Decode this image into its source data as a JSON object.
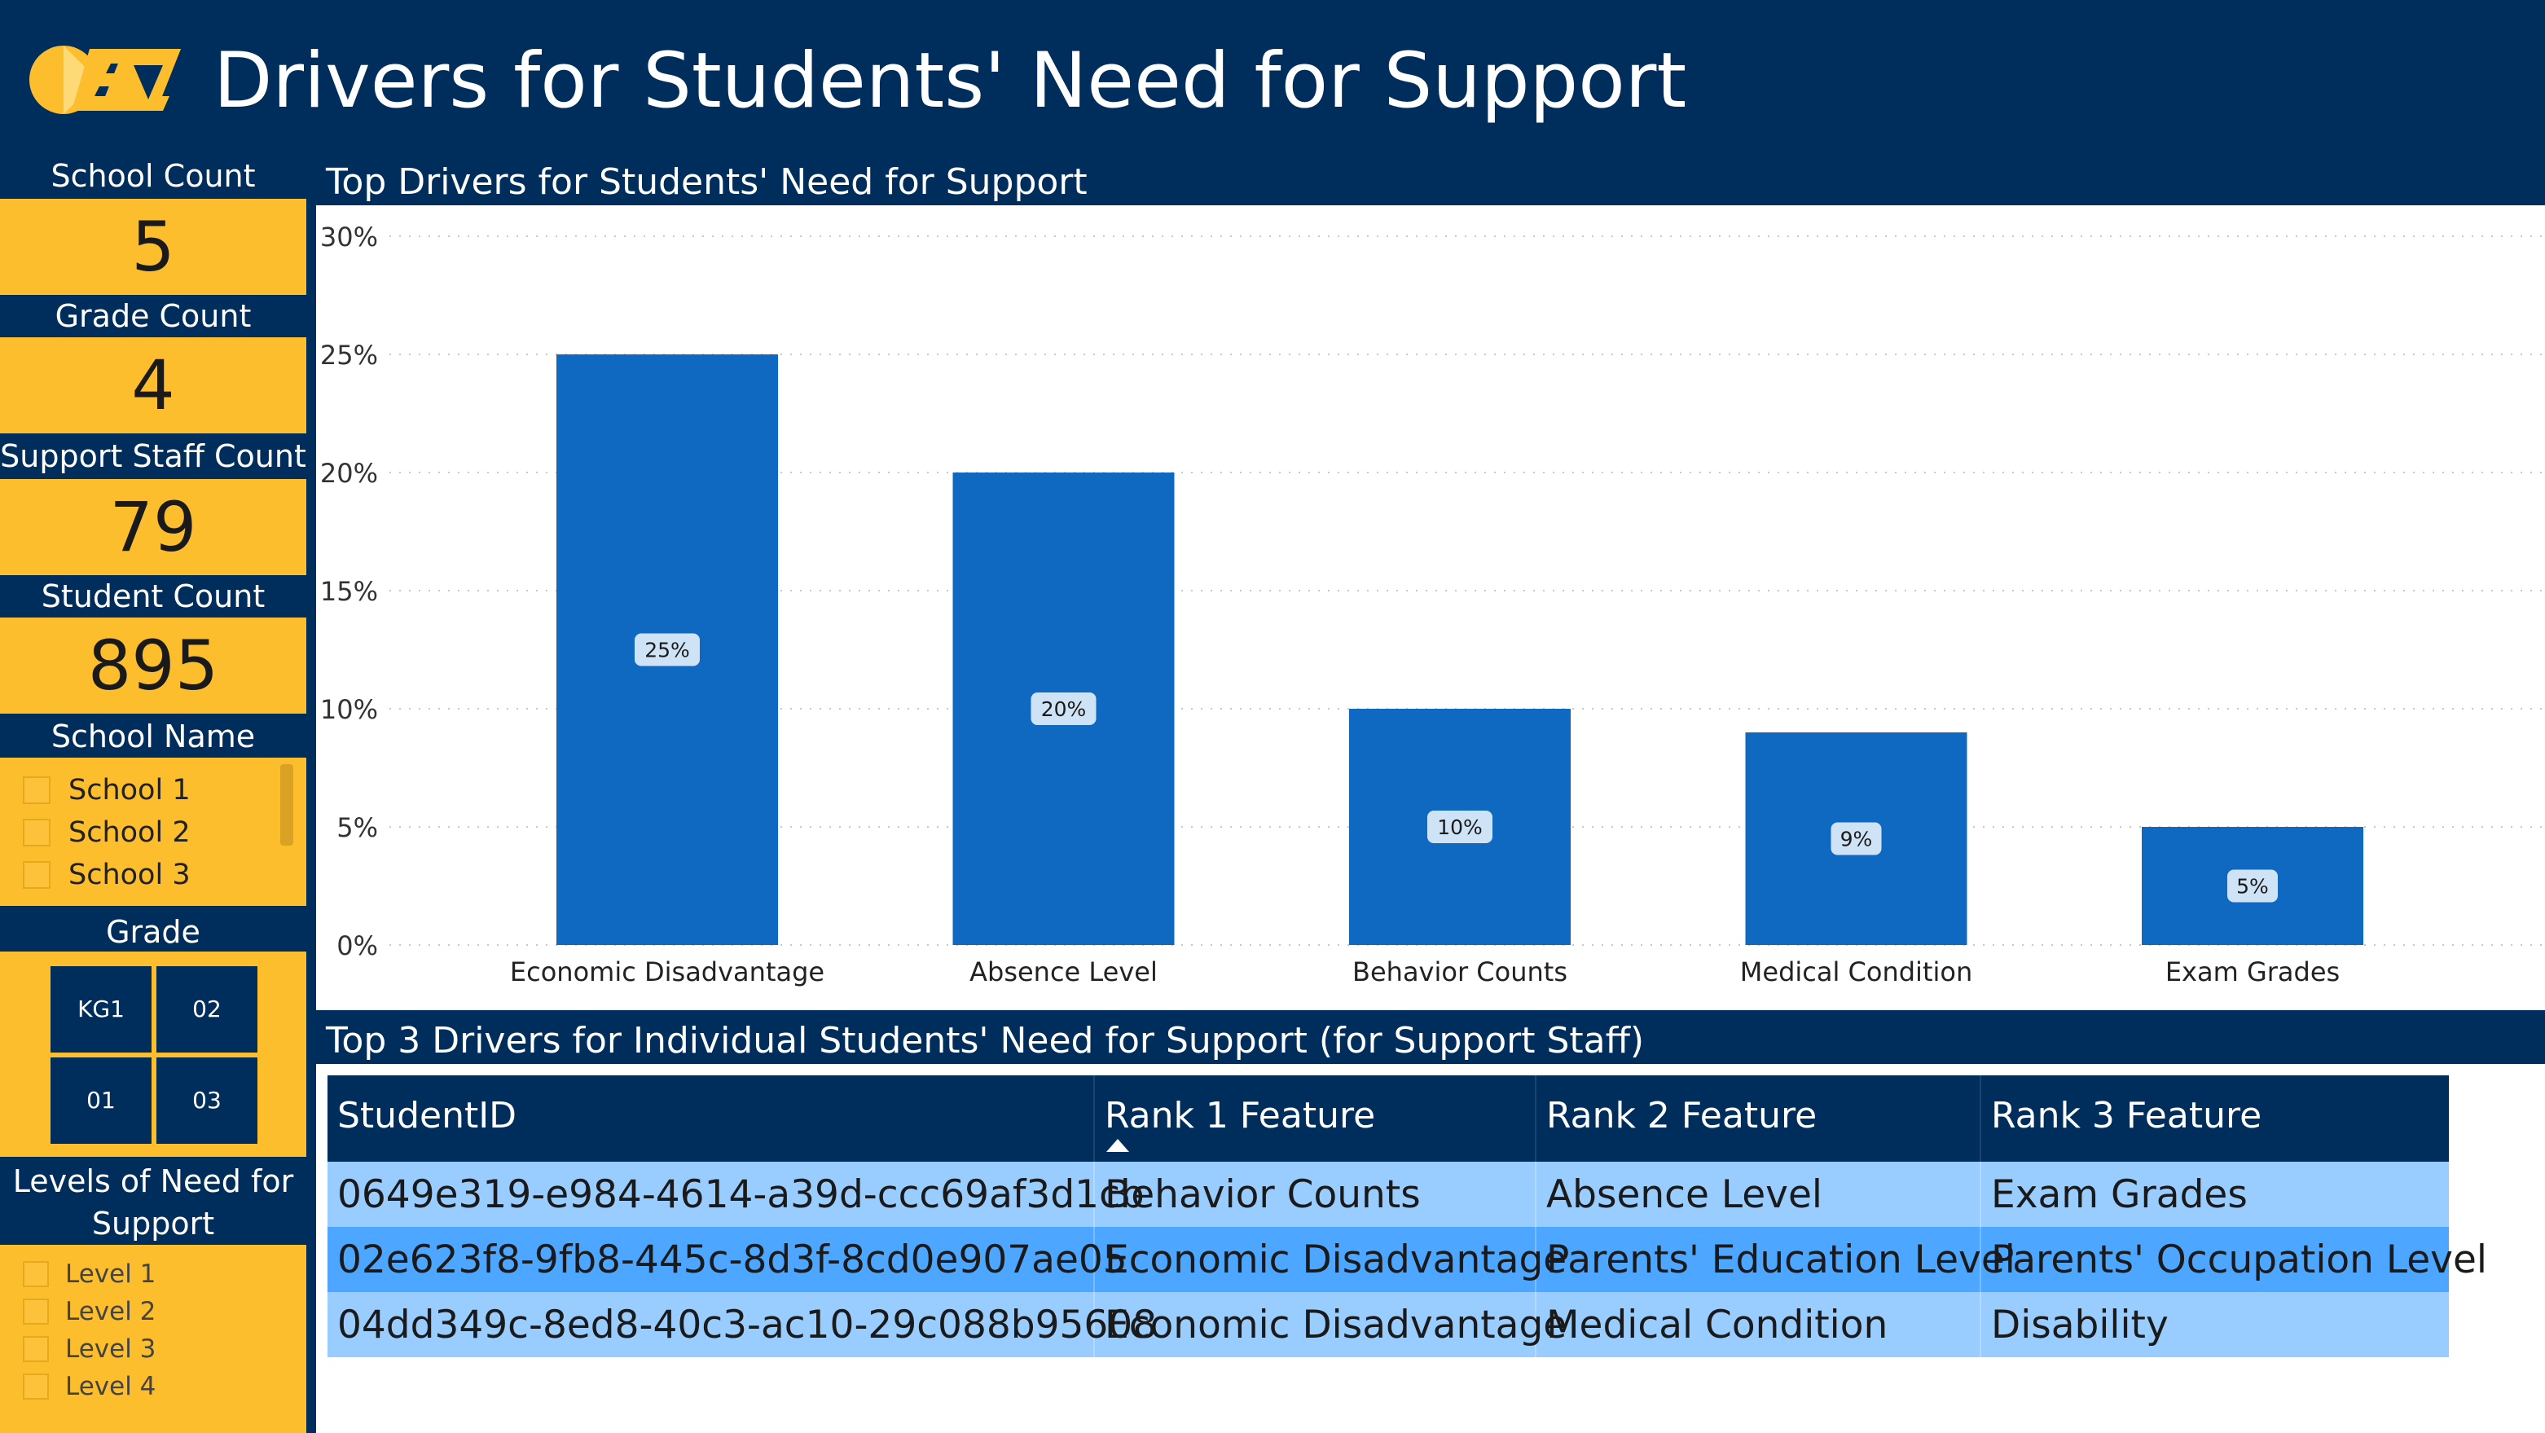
{
  "header": {
    "title": "Drivers for Students' Need for Support"
  },
  "kpis": [
    {
      "label": "School Count",
      "value": "5"
    },
    {
      "label": "Grade Count",
      "value": "4"
    },
    {
      "label": "Support Staff Count",
      "value": "79"
    },
    {
      "label": "Student Count",
      "value": "895"
    }
  ],
  "school_slicer": {
    "label": "School Name",
    "items": [
      "School 1",
      "School 2",
      "School 3"
    ]
  },
  "grade_slicer": {
    "label": "Grade",
    "tiles": [
      "KG1",
      "02",
      "01",
      "03"
    ]
  },
  "level_slicer": {
    "label_line1": "Levels of Need for",
    "label_line2": "Support",
    "items": [
      "Level 1",
      "Level 2",
      "Level 3",
      "Level 4"
    ]
  },
  "chart_panel": {
    "title": "Top Drivers for Students' Need for Support"
  },
  "chart_data": {
    "type": "bar",
    "categories": [
      "Economic Disadvantage",
      "Absence Level",
      "Behavior Counts",
      "Medical Condition",
      "Exam Grades"
    ],
    "values": [
      25,
      20,
      10,
      9,
      5
    ],
    "data_labels": [
      "25%",
      "20%",
      "10%",
      "9%",
      "5%"
    ],
    "y_ticks": [
      "0%",
      "5%",
      "10%",
      "15%",
      "20%",
      "25%",
      "30%"
    ],
    "ylim": [
      0,
      30
    ],
    "grid": true,
    "bar_color": "#0f69c1"
  },
  "table_panel": {
    "title": "Top 3 Drivers for Individual Students' Need for Support (for Support Staff)",
    "columns": [
      "StudentID",
      "Rank 1 Feature",
      "Rank 2 Feature",
      "Rank 3 Feature"
    ],
    "rows": [
      [
        "0649e319-e984-4614-a39d-ccc69af3d1cb",
        "Behavior Counts",
        "Absence Level",
        "Exam Grades"
      ],
      [
        "02e623f8-9fb8-445c-8d3f-8cd0e907ae05",
        "Economic Disadvantage",
        "Parents' Education Level",
        "Parents' Occupation Level"
      ],
      [
        "04dd349c-8ed8-40c3-ac10-29c088b95608",
        "Economic Disadvantage",
        "Medical Condition",
        "Disability"
      ]
    ]
  },
  "colors": {
    "navy": "#002e5c",
    "gold": "#fdbe2d",
    "bar_blue": "#0f69c1",
    "row_light": "#99ccff",
    "row_selected": "#4da6ff"
  }
}
